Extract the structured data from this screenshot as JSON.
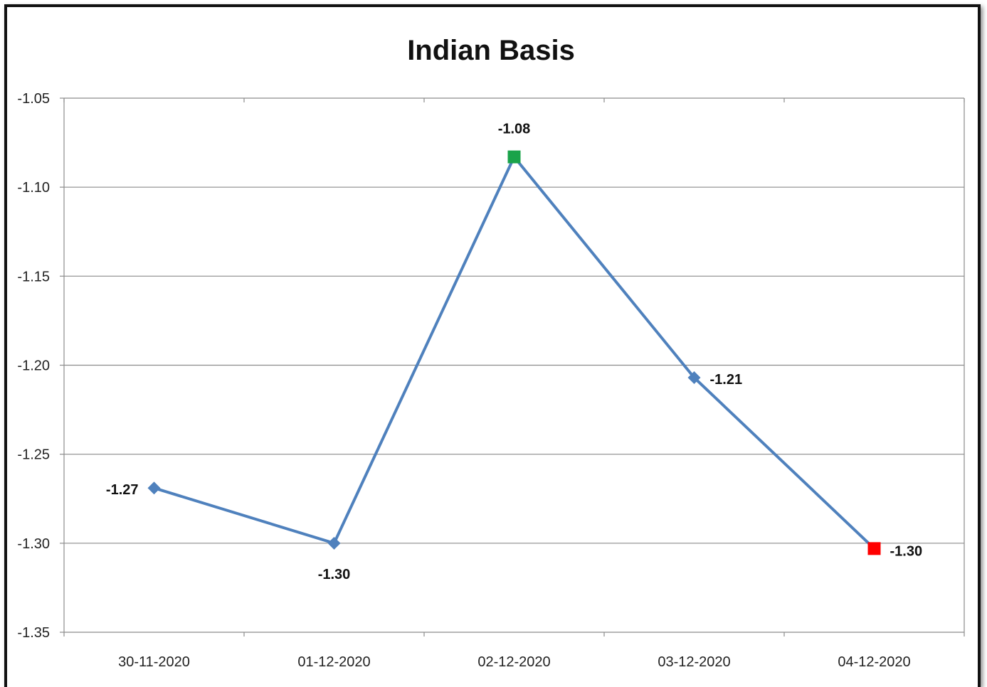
{
  "chart_data": {
    "type": "line",
    "title": "Indian Basis",
    "xlabel": "",
    "ylabel": "",
    "categories": [
      "30-11-2020",
      "01-12-2020",
      "02-12-2020",
      "03-12-2020",
      "04-12-2020"
    ],
    "values": [
      -1.269,
      -1.3,
      -1.083,
      -1.207,
      -1.303
    ],
    "data_labels": [
      "-1.27",
      "-1.30",
      "-1.08",
      "-1.21",
      "-1.30"
    ],
    "ylim": [
      -1.35,
      -1.05
    ],
    "yticks": [
      -1.05,
      -1.1,
      -1.15,
      -1.2,
      -1.25,
      -1.3,
      -1.35
    ],
    "ytick_labels": [
      "-1.05",
      "-1.10",
      "-1.15",
      "-1.20",
      "-1.25",
      "-1.30",
      "-1.35"
    ],
    "grid": true,
    "legend": "none",
    "line_color": "#4f81bd",
    "max_marker_color": "#1aa34a",
    "min_marker_color": "#ff0000",
    "highlight_max_index": 2,
    "highlight_min_index": 4
  }
}
